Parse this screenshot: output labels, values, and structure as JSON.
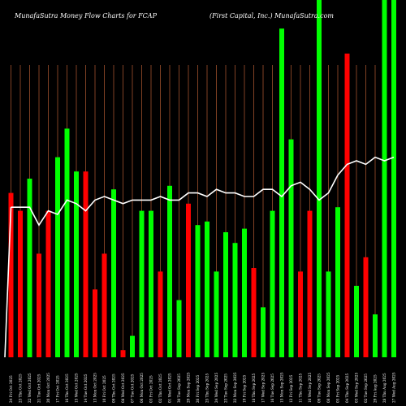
{
  "header": {
    "left": "MunafaSutra  Money Flow  Charts for FCAP",
    "right": "(First Capital,  Inc.) MunafaSutra.com"
  },
  "colors": {
    "background": "#000000",
    "up_bar": "#00ff00",
    "down_bar": "#ff0000",
    "grid": "#a0522d",
    "line": "#ffffff",
    "text": "#ffffff"
  },
  "chart_data": {
    "type": "bar",
    "title": "MunafaSutra  Money Flow  Charts for FCAP",
    "subtitle": "(First Capital,  Inc.) MunafaSutra.com",
    "grid": "vertical",
    "ylim": [
      0,
      100
    ],
    "categories": [
      "24 Fri Oct 2025",
      "23 Thu Oct 2025",
      "22 Wed Oct 2025",
      "21 Tue Oct 2025",
      "20 Mon Oct 2025",
      "17 Fri Oct 2025",
      "16 Thu Oct 2025",
      "15 Wed Oct 2025",
      "14 Tue Oct 2025",
      "13 Mon Oct 2025",
      "10 Fri Oct 2025",
      "09 Thu Oct 2025",
      "08 Wed Oct 2025",
      "07 Tue Oct 2025",
      "06 Mon Oct 2025",
      "03 Fri Oct 2025",
      "02 Thu Oct 2025",
      "01 Wed Oct 2025",
      "30 Tue Sep 2025",
      "29 Mon Sep 2025",
      "26 Fri Sep 2025",
      "25 Thu Sep 2025",
      "24 Wed Sep 2025",
      "23 Tue Sep 2025",
      "22 Mon Sep 2025",
      "19 Fri Sep 2025",
      "18 Thu Sep 2025",
      "17 Wed Sep 2025",
      "16 Tue Sep 2025",
      "15 Mon Sep 2025",
      "12 Fri Sep 2025",
      "11 Thu Sep 2025",
      "10 Wed Sep 2025",
      "09 Tue Sep 2025",
      "08 Mon Sep 2025",
      "05 Fri Sep 2025",
      "04 Thu Sep 2025",
      "03 Wed Sep 2025",
      "02 Tue Sep 2025",
      "29 Fri Aug 2025",
      "28 Thu Aug 2025",
      "27 Wed Aug 2025"
    ],
    "values": [
      46,
      41,
      50,
      29,
      41,
      56,
      64,
      52,
      52,
      19,
      29,
      47,
      2,
      6,
      41,
      41,
      24,
      48,
      16,
      43,
      37,
      38,
      24,
      35,
      32,
      36,
      25,
      14,
      41,
      92,
      61,
      24,
      41,
      100,
      24,
      42,
      85,
      20,
      28,
      12,
      100,
      100
    ],
    "directions": [
      "down",
      "down",
      "up",
      "down",
      "down",
      "up",
      "up",
      "up",
      "down",
      "down",
      "down",
      "up",
      "down",
      "up",
      "up",
      "up",
      "down",
      "up",
      "up",
      "down",
      "up",
      "up",
      "up",
      "up",
      "up",
      "up",
      "down",
      "up",
      "up",
      "up",
      "up",
      "down",
      "down",
      "up",
      "up",
      "up",
      "down",
      "up",
      "down",
      "up",
      "up",
      "up"
    ],
    "line_values": [
      42,
      42,
      42,
      37,
      41,
      40,
      44,
      43,
      41,
      44,
      45,
      44,
      43,
      44,
      44,
      44,
      45,
      44,
      44,
      46,
      46,
      45,
      47,
      46,
      46,
      45,
      45,
      47,
      47,
      45,
      48,
      49,
      47,
      44,
      46,
      51,
      54,
      55,
      54,
      56,
      55,
      56
    ]
  }
}
